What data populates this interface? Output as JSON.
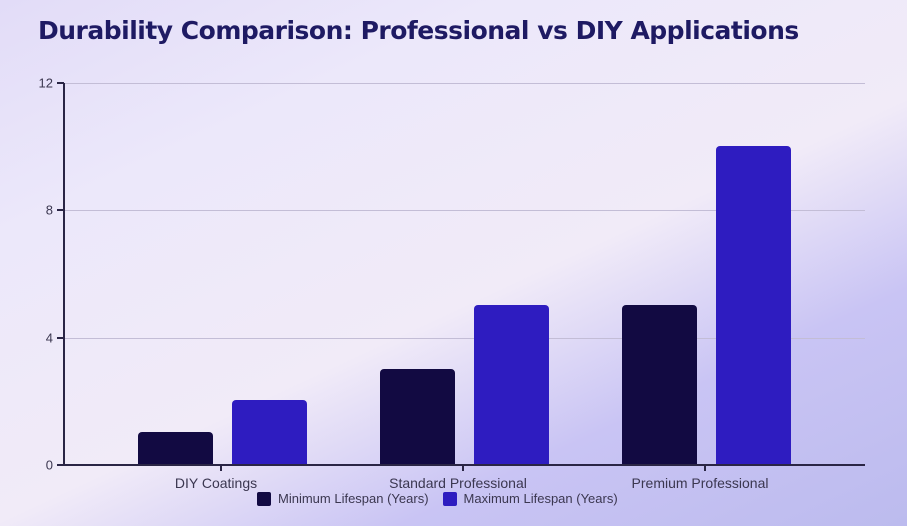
{
  "title": "Durability Comparison: Professional vs DIY Applications",
  "chart_data": {
    "type": "bar",
    "title": "Durability Comparison: Professional vs DIY Applications",
    "categories": [
      "DIY Coatings",
      "Standard Professional",
      "Premium Professional"
    ],
    "series": [
      {
        "name": "Minimum Lifespan (Years)",
        "values": [
          1,
          3,
          5
        ],
        "color": "#120a42"
      },
      {
        "name": "Maximum Lifespan (Years)",
        "values": [
          2,
          5,
          10
        ],
        "color": "#2e1cc0"
      }
    ],
    "xlabel": "",
    "ylabel": "",
    "ylim": [
      0,
      12
    ],
    "yticks": [
      0,
      4,
      8,
      12
    ],
    "grid": true,
    "legend_position": "bottom"
  }
}
